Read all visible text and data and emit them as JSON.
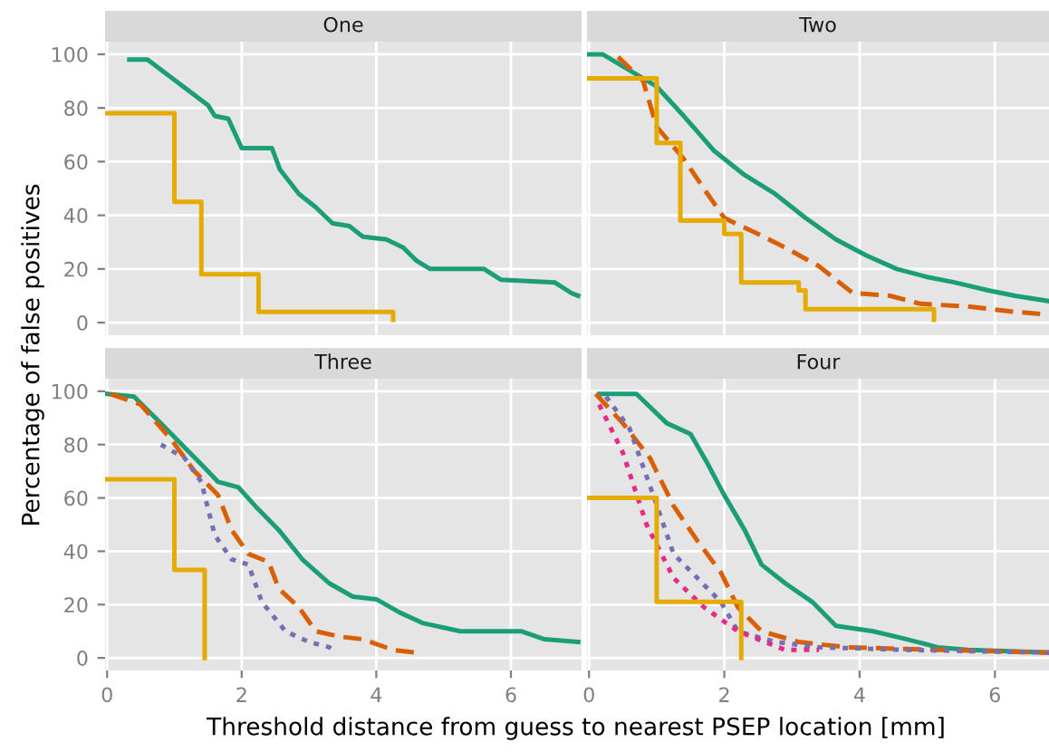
{
  "chart_data": [
    {
      "type": "step",
      "title": "One",
      "ylabel": "Percentage of false positives",
      "xlim": [
        -0.03,
        7.05
      ],
      "ylim": [
        -4.7,
        104.7
      ],
      "xticks": [
        0,
        2,
        4,
        6
      ],
      "yticks": [
        0,
        20,
        40,
        60,
        80,
        100
      ],
      "grid": true,
      "tick_labels": "y",
      "series": [
        {
          "type": "line",
          "color": "#1b9e77",
          "line_style": "solid",
          "x": [
            0.33,
            0.6,
            1.5,
            1.6,
            1.8,
            2.0,
            2.45,
            2.57,
            2.85,
            3.1,
            3.35,
            3.6,
            3.8,
            4.15,
            4.4,
            4.6,
            4.8,
            5.6,
            5.85,
            6.65,
            6.9,
            7.0
          ],
          "values": [
            98,
            98,
            81,
            77,
            76,
            65,
            65,
            57,
            48,
            43,
            37,
            36,
            32,
            31,
            28,
            23,
            20,
            20,
            16,
            15,
            11,
            10
          ]
        },
        {
          "color": "#e6ab02",
          "line_style": "solid",
          "x": [
            0,
            1.0,
            1.4,
            2.25,
            4.25
          ],
          "values": [
            78,
            45,
            18,
            4,
            1
          ]
        }
      ]
    },
    {
      "type": "step",
      "title": "Two",
      "xlim": [
        -0.03,
        6.8
      ],
      "ylim": [
        -4.7,
        104.7
      ],
      "xticks": [
        0,
        2,
        4,
        6
      ],
      "yticks": [
        0,
        20,
        40,
        60,
        80,
        100
      ],
      "grid": true,
      "tick_labels": false,
      "series": [
        {
          "type": "line",
          "color": "#1b9e77",
          "line_style": "solid",
          "x": [
            0,
            0.2,
            1.0,
            1.4,
            1.85,
            2.3,
            2.75,
            3.2,
            3.65,
            4.1,
            4.55,
            5.0,
            5.4,
            5.9,
            6.3,
            6.8
          ],
          "values": [
            100,
            100,
            88,
            77,
            64,
            55,
            48,
            39,
            31,
            25,
            20,
            17,
            15,
            12,
            10,
            8
          ]
        },
        {
          "type": "line",
          "color": "#d95f02",
          "line_style": "dashed",
          "x": [
            0.43,
            0.8,
            1.0,
            1.4,
            1.75,
            2.0,
            2.5,
            2.9,
            3.4,
            3.9,
            4.45,
            4.9,
            5.6,
            6.3,
            6.8
          ],
          "values": [
            99,
            90,
            73,
            61,
            48,
            39,
            33,
            28,
            21,
            11,
            10,
            7,
            6,
            4,
            3
          ]
        },
        {
          "color": "#e6ab02",
          "line_style": "solid",
          "x": [
            0,
            1.0,
            1.35,
            2.0,
            2.25,
            3.1,
            3.2,
            5.1
          ],
          "values": [
            91,
            67,
            38,
            33,
            15,
            12,
            5,
            1
          ]
        }
      ]
    },
    {
      "type": "step",
      "title": "Three",
      "xlabel": "Threshold distance from guess to nearest PSEP location [mm]",
      "xlim": [
        -0.03,
        7.05
      ],
      "ylim": [
        -4.7,
        104.7
      ],
      "xticks": [
        0,
        2,
        4,
        6
      ],
      "yticks": [
        0,
        20,
        40,
        60,
        80,
        100
      ],
      "grid": true,
      "series": [
        {
          "type": "line",
          "color": "#1b9e77",
          "line_style": "solid",
          "x": [
            0,
            0.4,
            0.8,
            1.15,
            1.5,
            1.65,
            1.95,
            2.2,
            2.55,
            2.9,
            3.3,
            3.65,
            4.0,
            4.35,
            4.7,
            5.25,
            6.15,
            6.5,
            7.0
          ],
          "values": [
            99,
            98,
            88,
            79,
            70,
            66,
            64,
            57,
            48,
            37,
            28,
            23,
            22,
            17,
            13,
            10,
            10,
            7,
            6
          ]
        },
        {
          "type": "line",
          "color": "#d95f02",
          "line_style": "dashed",
          "x": [
            0.05,
            0.5,
            0.95,
            1.3,
            1.65,
            1.85,
            2.1,
            2.4,
            2.55,
            2.85,
            3.1,
            3.45,
            3.8,
            4.25,
            4.6
          ],
          "values": [
            99,
            95,
            82,
            70,
            61,
            48,
            39,
            36,
            26,
            19,
            10,
            8,
            7,
            3,
            2
          ]
        },
        {
          "type": "line",
          "color": "#7570b3",
          "line_style": "dotted",
          "x": [
            0.8,
            1.15,
            1.4,
            1.6,
            1.85,
            2.1,
            2.3,
            2.65,
            3.0,
            3.3,
            3.4
          ],
          "values": [
            80,
            75,
            66,
            46,
            37,
            35,
            21,
            10,
            6,
            4,
            2
          ]
        },
        {
          "color": "#e6ab02",
          "line_style": "solid",
          "x": [
            0,
            1.0,
            1.45
          ],
          "values": [
            67,
            33,
            0
          ]
        }
      ]
    },
    {
      "type": "step",
      "title": "Four",
      "xlim": [
        -0.03,
        6.8
      ],
      "ylim": [
        -4.7,
        104.7
      ],
      "xticks": [
        0,
        2,
        4,
        6
      ],
      "yticks": [
        0,
        20,
        40,
        60,
        80,
        100
      ],
      "grid": true,
      "tick_labels": "x",
      "series": [
        {
          "type": "line",
          "color": "#1b9e77",
          "line_style": "solid",
          "x": [
            0.15,
            0.7,
            1.15,
            1.5,
            1.75,
            2.0,
            2.3,
            2.55,
            2.9,
            3.3,
            3.65,
            4.2,
            4.7,
            5.15,
            5.6,
            6.8
          ],
          "values": [
            99,
            99,
            88,
            84,
            73,
            61,
            48,
            35,
            28,
            21,
            12,
            10,
            7,
            4,
            3,
            2
          ]
        },
        {
          "type": "line",
          "color": "#d95f02",
          "line_style": "dashed",
          "x": [
            0.1,
            0.5,
            0.9,
            1.25,
            1.6,
            1.95,
            2.2,
            2.55,
            3.1,
            3.8,
            5.15,
            6.8
          ],
          "values": [
            99,
            88,
            75,
            57,
            44,
            32,
            19,
            10,
            6,
            4,
            3,
            2
          ]
        },
        {
          "type": "line",
          "color": "#7570b3",
          "line_style": "dotted",
          "x": [
            0.25,
            0.6,
            0.95,
            1.25,
            1.6,
            1.95,
            2.2,
            2.75,
            3.4,
            4.7,
            6.8
          ],
          "values": [
            98,
            86,
            61,
            39,
            30,
            21,
            10,
            6,
            4,
            3,
            2
          ]
        },
        {
          "type": "line",
          "color": "#e7298a",
          "line_style": "dotted",
          "x": [
            0.15,
            0.5,
            0.85,
            1.25,
            1.7,
            2.2,
            2.9,
            3.4
          ],
          "values": [
            95,
            77,
            50,
            30,
            19,
            10,
            3,
            3
          ]
        },
        {
          "color": "#e6ab02",
          "line_style": "solid",
          "x": [
            0,
            1.0,
            2.25
          ],
          "values": [
            60,
            21,
            0
          ]
        }
      ]
    }
  ]
}
